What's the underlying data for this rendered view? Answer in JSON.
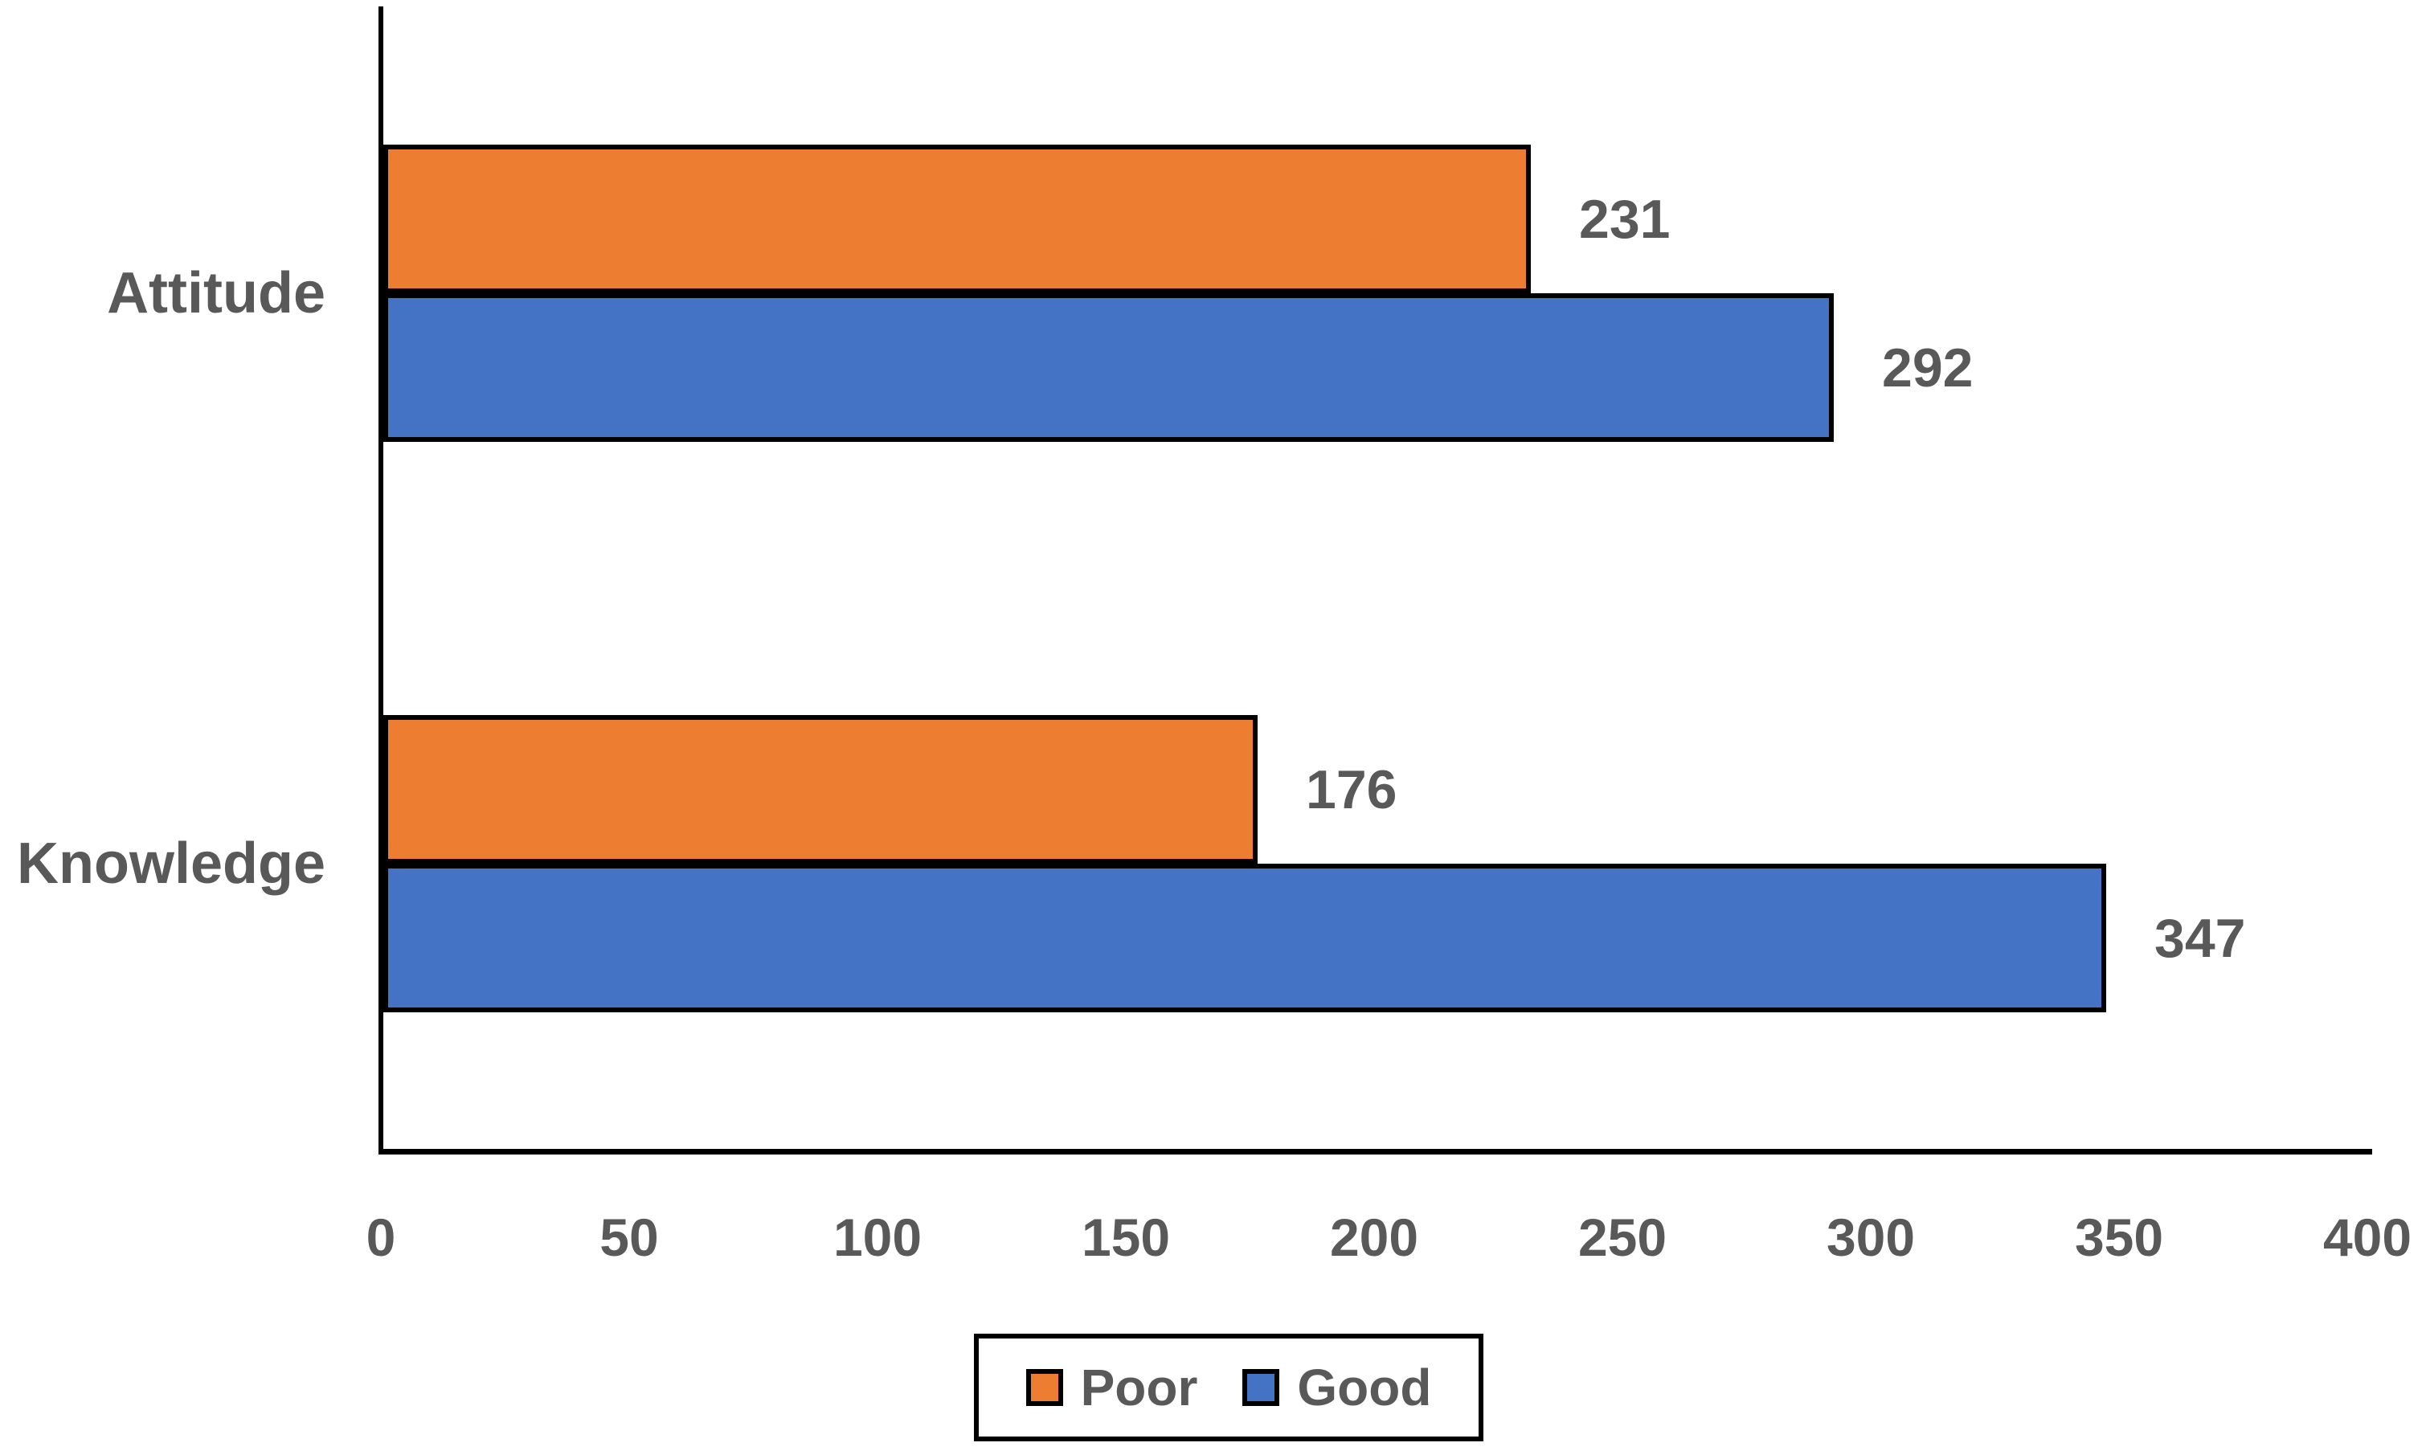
{
  "chart_data": {
    "type": "bar",
    "orientation": "horizontal",
    "title": "",
    "xlabel": "",
    "ylabel": "",
    "categories": [
      "Attitude",
      "Knowledge"
    ],
    "series": [
      {
        "name": "Poor",
        "color": "#ED7D31",
        "values": [
          231,
          176
        ]
      },
      {
        "name": "Good",
        "color": "#4472C4",
        "values": [
          292,
          347
        ]
      }
    ],
    "xlim": [
      0,
      400
    ],
    "x_ticks": [
      0,
      50,
      100,
      150,
      200,
      250,
      300,
      350,
      400
    ],
    "grid": false,
    "data_labels": true,
    "legend_position": "bottom-center"
  },
  "colors": {
    "axis": "#000000",
    "bar_outline": "#000000",
    "text": "#595959",
    "background": "#ffffff",
    "poor": "#ED7D31",
    "good": "#4472C4"
  }
}
